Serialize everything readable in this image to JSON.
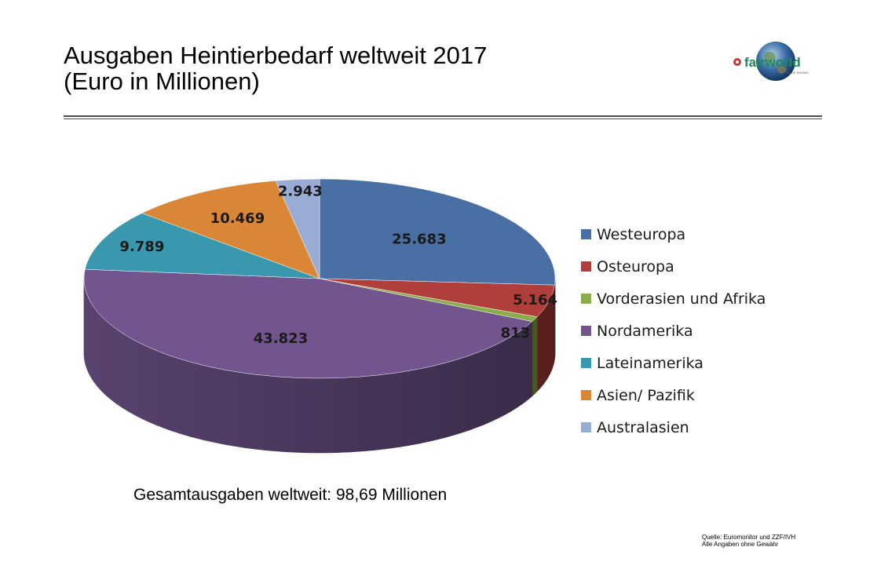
{
  "title_line1": "Ausgaben Heintierbedarf weltweit 2017",
  "title_line2": "(Euro in Millionen)",
  "logo": {
    "name": "fairworld logo",
    "text": "fairworld",
    "subtext": "TRADE SHOWS"
  },
  "total_text": "Gesamtausgaben weltweit: 98,69 Millionen",
  "source_line1": "Quelle: Euromonitor und ZZF/IVH",
  "source_line2": "Alle Angaben ohne Gewähr",
  "colors": {
    "Westeuropa": "#4a6fa5",
    "Osteuropa": "#b03e3b",
    "Vorderasien und Afrika": "#8aac4a",
    "Nordamerika": "#72558f",
    "Lateinamerika": "#3a98ae",
    "Asien/ Pazifik": "#d98736",
    "Australasien": "#98acd4"
  },
  "chart_data": {
    "type": "pie",
    "style": "3d",
    "title": "Ausgaben Heintierbedarf weltweit 2017 (Euro in Millionen)",
    "legend_position": "right",
    "categories": [
      "Westeuropa",
      "Osteuropa",
      "Vorderasien und Afrika",
      "Nordamerika",
      "Lateinamerika",
      "Asien/ Pazifik",
      "Australasien"
    ],
    "values": [
      25683,
      5164,
      813,
      43823,
      9789,
      10469,
      2943
    ],
    "data_labels": [
      "25.683",
      "5.164",
      "813",
      "43.823",
      "9.789",
      "10.469",
      "2.943"
    ]
  }
}
